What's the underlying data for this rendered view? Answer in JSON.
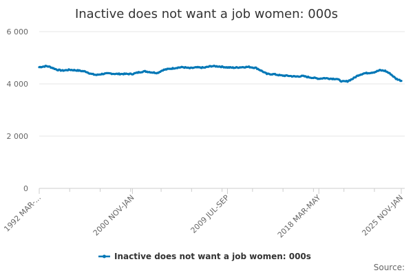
{
  "chart_data": {
    "type": "line",
    "title": "Inactive does not want a job women: 000s",
    "xlabel": "",
    "ylabel": "",
    "ylim": [
      0,
      6000
    ],
    "yticks": [
      0,
      2000,
      4000,
      6000
    ],
    "ytick_labels": [
      "0",
      "2 000",
      "4 000",
      "6 000"
    ],
    "xtick_labels": [
      {
        "index": 0,
        "label": "1992 MAR-..."
      },
      {
        "index": 104,
        "label": "2000 NOV-JAN"
      },
      {
        "index": 210,
        "label": "2009 JUL-SEP"
      },
      {
        "index": 312,
        "label": "2018 MAR-MAY"
      },
      {
        "index": 404,
        "label": "2025 NOV-JAN"
      }
    ],
    "x_count": 405,
    "grid": true,
    "legend": "bottom",
    "color": "#0077b6",
    "series": [
      {
        "name": "Inactive does not want a job women: 000s",
        "keypoints": [
          [
            0,
            4640
          ],
          [
            8,
            4680
          ],
          [
            12,
            4650
          ],
          [
            20,
            4540
          ],
          [
            26,
            4510
          ],
          [
            34,
            4540
          ],
          [
            44,
            4510
          ],
          [
            52,
            4470
          ],
          [
            58,
            4380
          ],
          [
            64,
            4340
          ],
          [
            70,
            4380
          ],
          [
            78,
            4400
          ],
          [
            86,
            4380
          ],
          [
            96,
            4380
          ],
          [
            104,
            4380
          ],
          [
            112,
            4450
          ],
          [
            118,
            4480
          ],
          [
            126,
            4440
          ],
          [
            132,
            4420
          ],
          [
            138,
            4530
          ],
          [
            146,
            4580
          ],
          [
            154,
            4620
          ],
          [
            160,
            4640
          ],
          [
            168,
            4600
          ],
          [
            176,
            4630
          ],
          [
            184,
            4620
          ],
          [
            192,
            4680
          ],
          [
            200,
            4670
          ],
          [
            210,
            4630
          ],
          [
            218,
            4620
          ],
          [
            226,
            4640
          ],
          [
            234,
            4650
          ],
          [
            242,
            4610
          ],
          [
            248,
            4500
          ],
          [
            254,
            4380
          ],
          [
            262,
            4370
          ],
          [
            270,
            4320
          ],
          [
            278,
            4310
          ],
          [
            286,
            4280
          ],
          [
            294,
            4300
          ],
          [
            300,
            4260
          ],
          [
            306,
            4230
          ],
          [
            312,
            4200
          ],
          [
            318,
            4220
          ],
          [
            326,
            4200
          ],
          [
            332,
            4190
          ],
          [
            338,
            4090
          ],
          [
            344,
            4100
          ],
          [
            350,
            4200
          ],
          [
            356,
            4330
          ],
          [
            362,
            4400
          ],
          [
            368,
            4420
          ],
          [
            374,
            4450
          ],
          [
            380,
            4520
          ],
          [
            386,
            4500
          ],
          [
            392,
            4380
          ],
          [
            398,
            4200
          ],
          [
            404,
            4120
          ]
        ]
      }
    ]
  },
  "source_label": "Source:"
}
